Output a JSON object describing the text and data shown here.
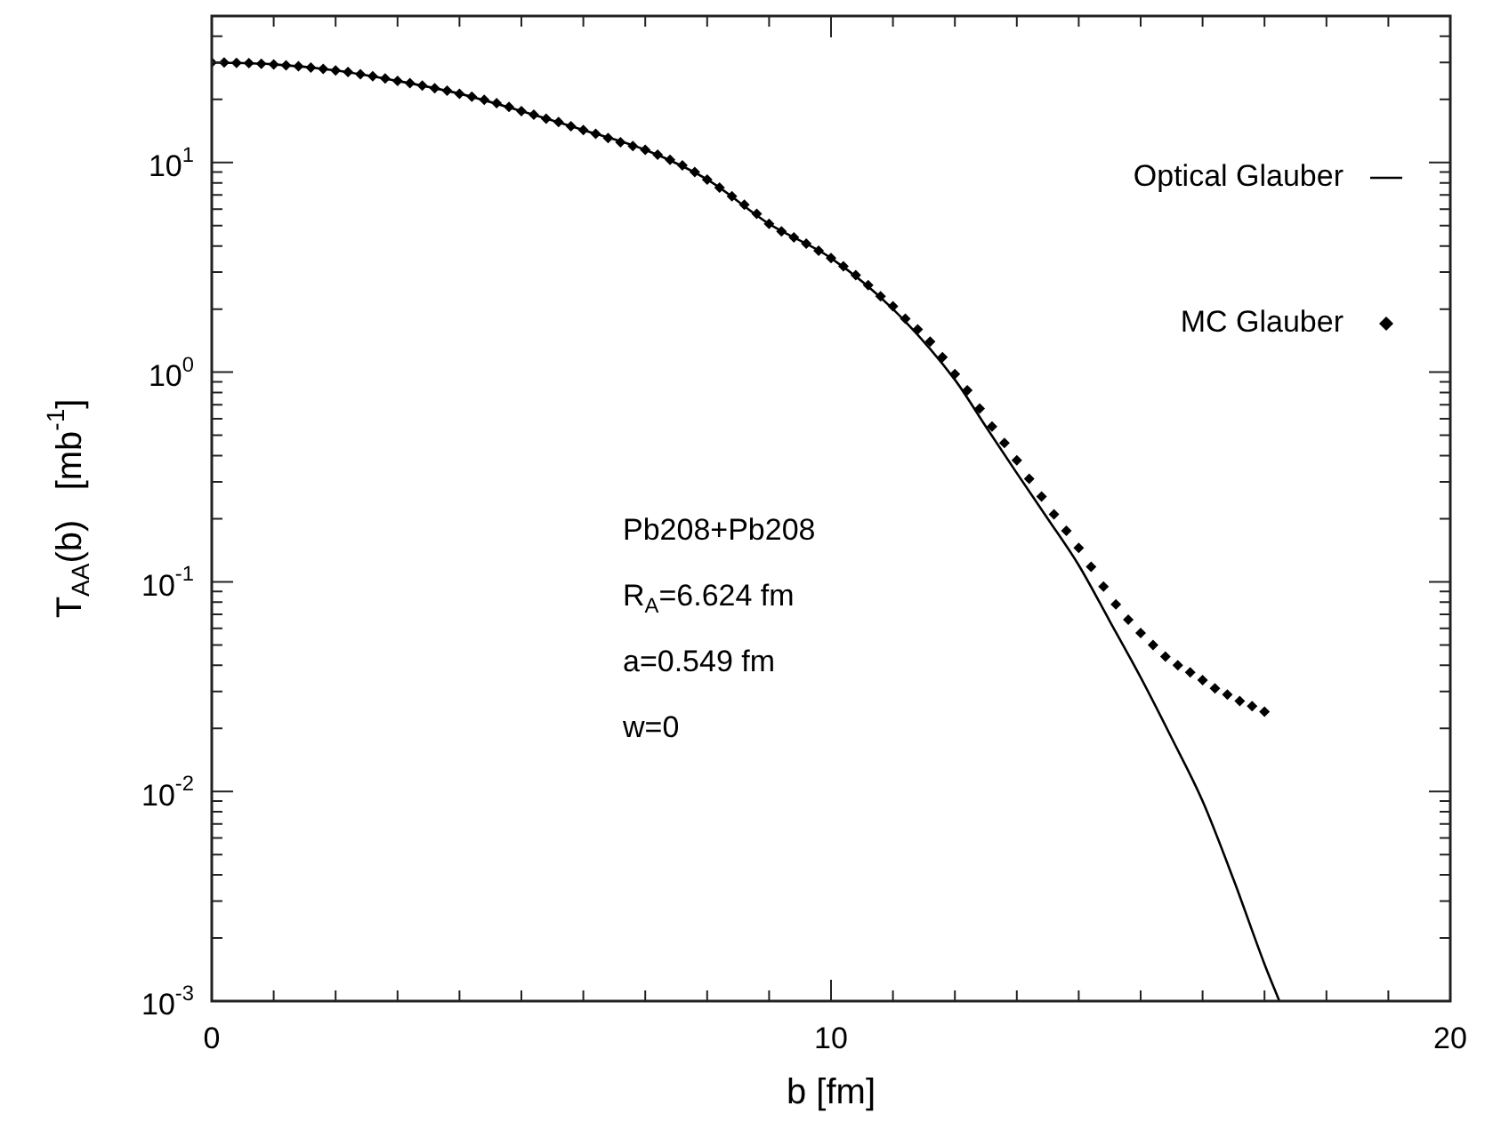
{
  "chart_data": {
    "type": "line",
    "xlabel": "b [fm]",
    "ylabel": "T$_{AA}$(b)   [mb$^{-1}$]",
    "xlim": [
      0,
      20
    ],
    "ylim": [
      0.001,
      50
    ],
    "log": "y",
    "legend": "top right",
    "grid": false,
    "xticks": [
      0,
      {
        "value": 1,
        "label": null
      },
      {
        "value": 2,
        "label": null
      },
      {
        "value": 3,
        "label": null
      },
      {
        "value": 4,
        "label": null
      },
      {
        "value": 5,
        "label": null
      },
      {
        "value": 6,
        "label": null
      },
      {
        "value": 7,
        "label": null
      },
      {
        "value": 8,
        "label": null
      },
      {
        "value": 9,
        "label": null
      },
      10,
      {
        "value": 11,
        "label": null
      },
      {
        "value": 12,
        "label": null
      },
      {
        "value": 13,
        "label": null
      },
      {
        "value": 14,
        "label": null
      },
      {
        "value": 15,
        "label": null
      },
      {
        "value": 16,
        "label": null
      },
      {
        "value": 17,
        "label": null
      },
      {
        "value": 18,
        "label": null
      },
      {
        "value": 19,
        "label": null
      },
      20
    ],
    "yticks": [
      {
        "value": 0.001,
        "label": "10$^{-3}$"
      },
      {
        "value": 0.002,
        "label": null
      },
      {
        "value": 0.003,
        "label": null
      },
      {
        "value": 0.004,
        "label": null
      },
      {
        "value": 0.005,
        "label": null
      },
      {
        "value": 0.006,
        "label": null
      },
      {
        "value": 0.007,
        "label": null
      },
      {
        "value": 0.008,
        "label": null
      },
      {
        "value": 0.009,
        "label": null
      },
      {
        "value": 0.01,
        "label": "10$^{-2}$"
      },
      {
        "value": 0.02,
        "label": null
      },
      {
        "value": 0.03,
        "label": null
      },
      {
        "value": 0.04,
        "label": null
      },
      {
        "value": 0.05,
        "label": null
      },
      {
        "value": 0.06,
        "label": null
      },
      {
        "value": 0.07,
        "label": null
      },
      {
        "value": 0.08,
        "label": null
      },
      {
        "value": 0.09,
        "label": null
      },
      {
        "value": 0.1,
        "label": "10$^{-1}$"
      },
      {
        "value": 0.2,
        "label": null
      },
      {
        "value": 0.3,
        "label": null
      },
      {
        "value": 0.4,
        "label": null
      },
      {
        "value": 0.5,
        "label": null
      },
      {
        "value": 0.6,
        "label": null
      },
      {
        "value": 0.7,
        "label": null
      },
      {
        "value": 0.8,
        "label": null
      },
      {
        "value": 0.9,
        "label": null
      },
      {
        "value": 1,
        "label": "10$^{0}$"
      },
      {
        "value": 2,
        "label": null
      },
      {
        "value": 3,
        "label": null
      },
      {
        "value": 4,
        "label": null
      },
      {
        "value": 5,
        "label": null
      },
      {
        "value": 6,
        "label": null
      },
      {
        "value": 7,
        "label": null
      },
      {
        "value": 8,
        "label": null
      },
      {
        "value": 9,
        "label": null
      },
      {
        "value": 10,
        "label": "10$^{1}$"
      },
      {
        "value": 20,
        "label": null
      },
      {
        "value": 30,
        "label": null
      },
      {
        "value": 40,
        "label": null
      }
    ],
    "annotations": [
      "Pb208+Pb208",
      "R$_{A}$=6.624 fm",
      "a=0.549 fm",
      "w=0"
    ],
    "series": [
      {
        "name": "Optical Glauber",
        "type": "line",
        "color": "#000000",
        "marker": "none",
        "line_style": "solid",
        "x": [
          0,
          1,
          2,
          3,
          4,
          5,
          6,
          7,
          8,
          9,
          10,
          11,
          12,
          12.5,
          13,
          13.5,
          14,
          14.5,
          15,
          15.5,
          16,
          16.5,
          17,
          17.24
        ],
        "values": [
          30,
          29.4,
          27.5,
          24.5,
          21.3,
          17.6,
          14.3,
          11.5,
          8.3,
          5.1,
          3.5,
          2.0,
          0.92,
          0.55,
          0.33,
          0.2,
          0.12,
          0.065,
          0.035,
          0.018,
          0.009,
          0.0038,
          0.0015,
          0.001
        ]
      },
      {
        "name": "MC Glauber",
        "type": "scatter",
        "color": "#000000",
        "marker": "diamond",
        "x": [
          0,
          0.2,
          0.4,
          0.6,
          0.8,
          1,
          1.2,
          1.4,
          1.6,
          1.8,
          2,
          2.2,
          2.4,
          2.6,
          2.8,
          3,
          3.2,
          3.4,
          3.6,
          3.8,
          4,
          4.2,
          4.4,
          4.6,
          4.8,
          5,
          5.2,
          5.4,
          5.6,
          5.8,
          6,
          6.2,
          6.4,
          6.6,
          6.8,
          7,
          7.2,
          7.4,
          7.6,
          7.8,
          8,
          8.2,
          8.4,
          8.6,
          8.8,
          9,
          9.2,
          9.4,
          9.6,
          9.8,
          10,
          10.2,
          10.4,
          10.6,
          10.8,
          11,
          11.2,
          11.4,
          11.6,
          11.8,
          12,
          12.2,
          12.4,
          12.6,
          12.8,
          13,
          13.2,
          13.4,
          13.6,
          13.8,
          14,
          14.2,
          14.4,
          14.6,
          14.8,
          15,
          15.2,
          15.4,
          15.6,
          15.8,
          16,
          16.2,
          16.4,
          16.6,
          16.8,
          17
        ],
        "values": [
          30,
          30,
          29.9,
          29.8,
          29.6,
          29.4,
          29.1,
          28.8,
          28.4,
          28,
          27.5,
          27,
          26.4,
          25.8,
          25.2,
          24.5,
          23.9,
          23.3,
          22.6,
          22,
          21.3,
          20.6,
          19.9,
          19.2,
          18.4,
          17.6,
          16.9,
          16.2,
          15.6,
          14.9,
          14.3,
          13.7,
          13.1,
          12.5,
          12,
          11.5,
          10.9,
          10.3,
          9.7,
          9,
          8.3,
          7.6,
          6.9,
          6.3,
          5.7,
          5.1,
          4.7,
          4.4,
          4.1,
          3.8,
          3.5,
          3.2,
          2.9,
          2.6,
          2.3,
          2.06,
          1.8,
          1.6,
          1.4,
          1.18,
          0.98,
          0.82,
          0.67,
          0.55,
          0.46,
          0.38,
          0.31,
          0.255,
          0.21,
          0.175,
          0.145,
          0.118,
          0.095,
          0.078,
          0.066,
          0.057,
          0.05,
          0.044,
          0.04,
          0.037,
          0.034,
          0.031,
          0.029,
          0.027,
          0.0255,
          0.024
        ]
      }
    ]
  }
}
